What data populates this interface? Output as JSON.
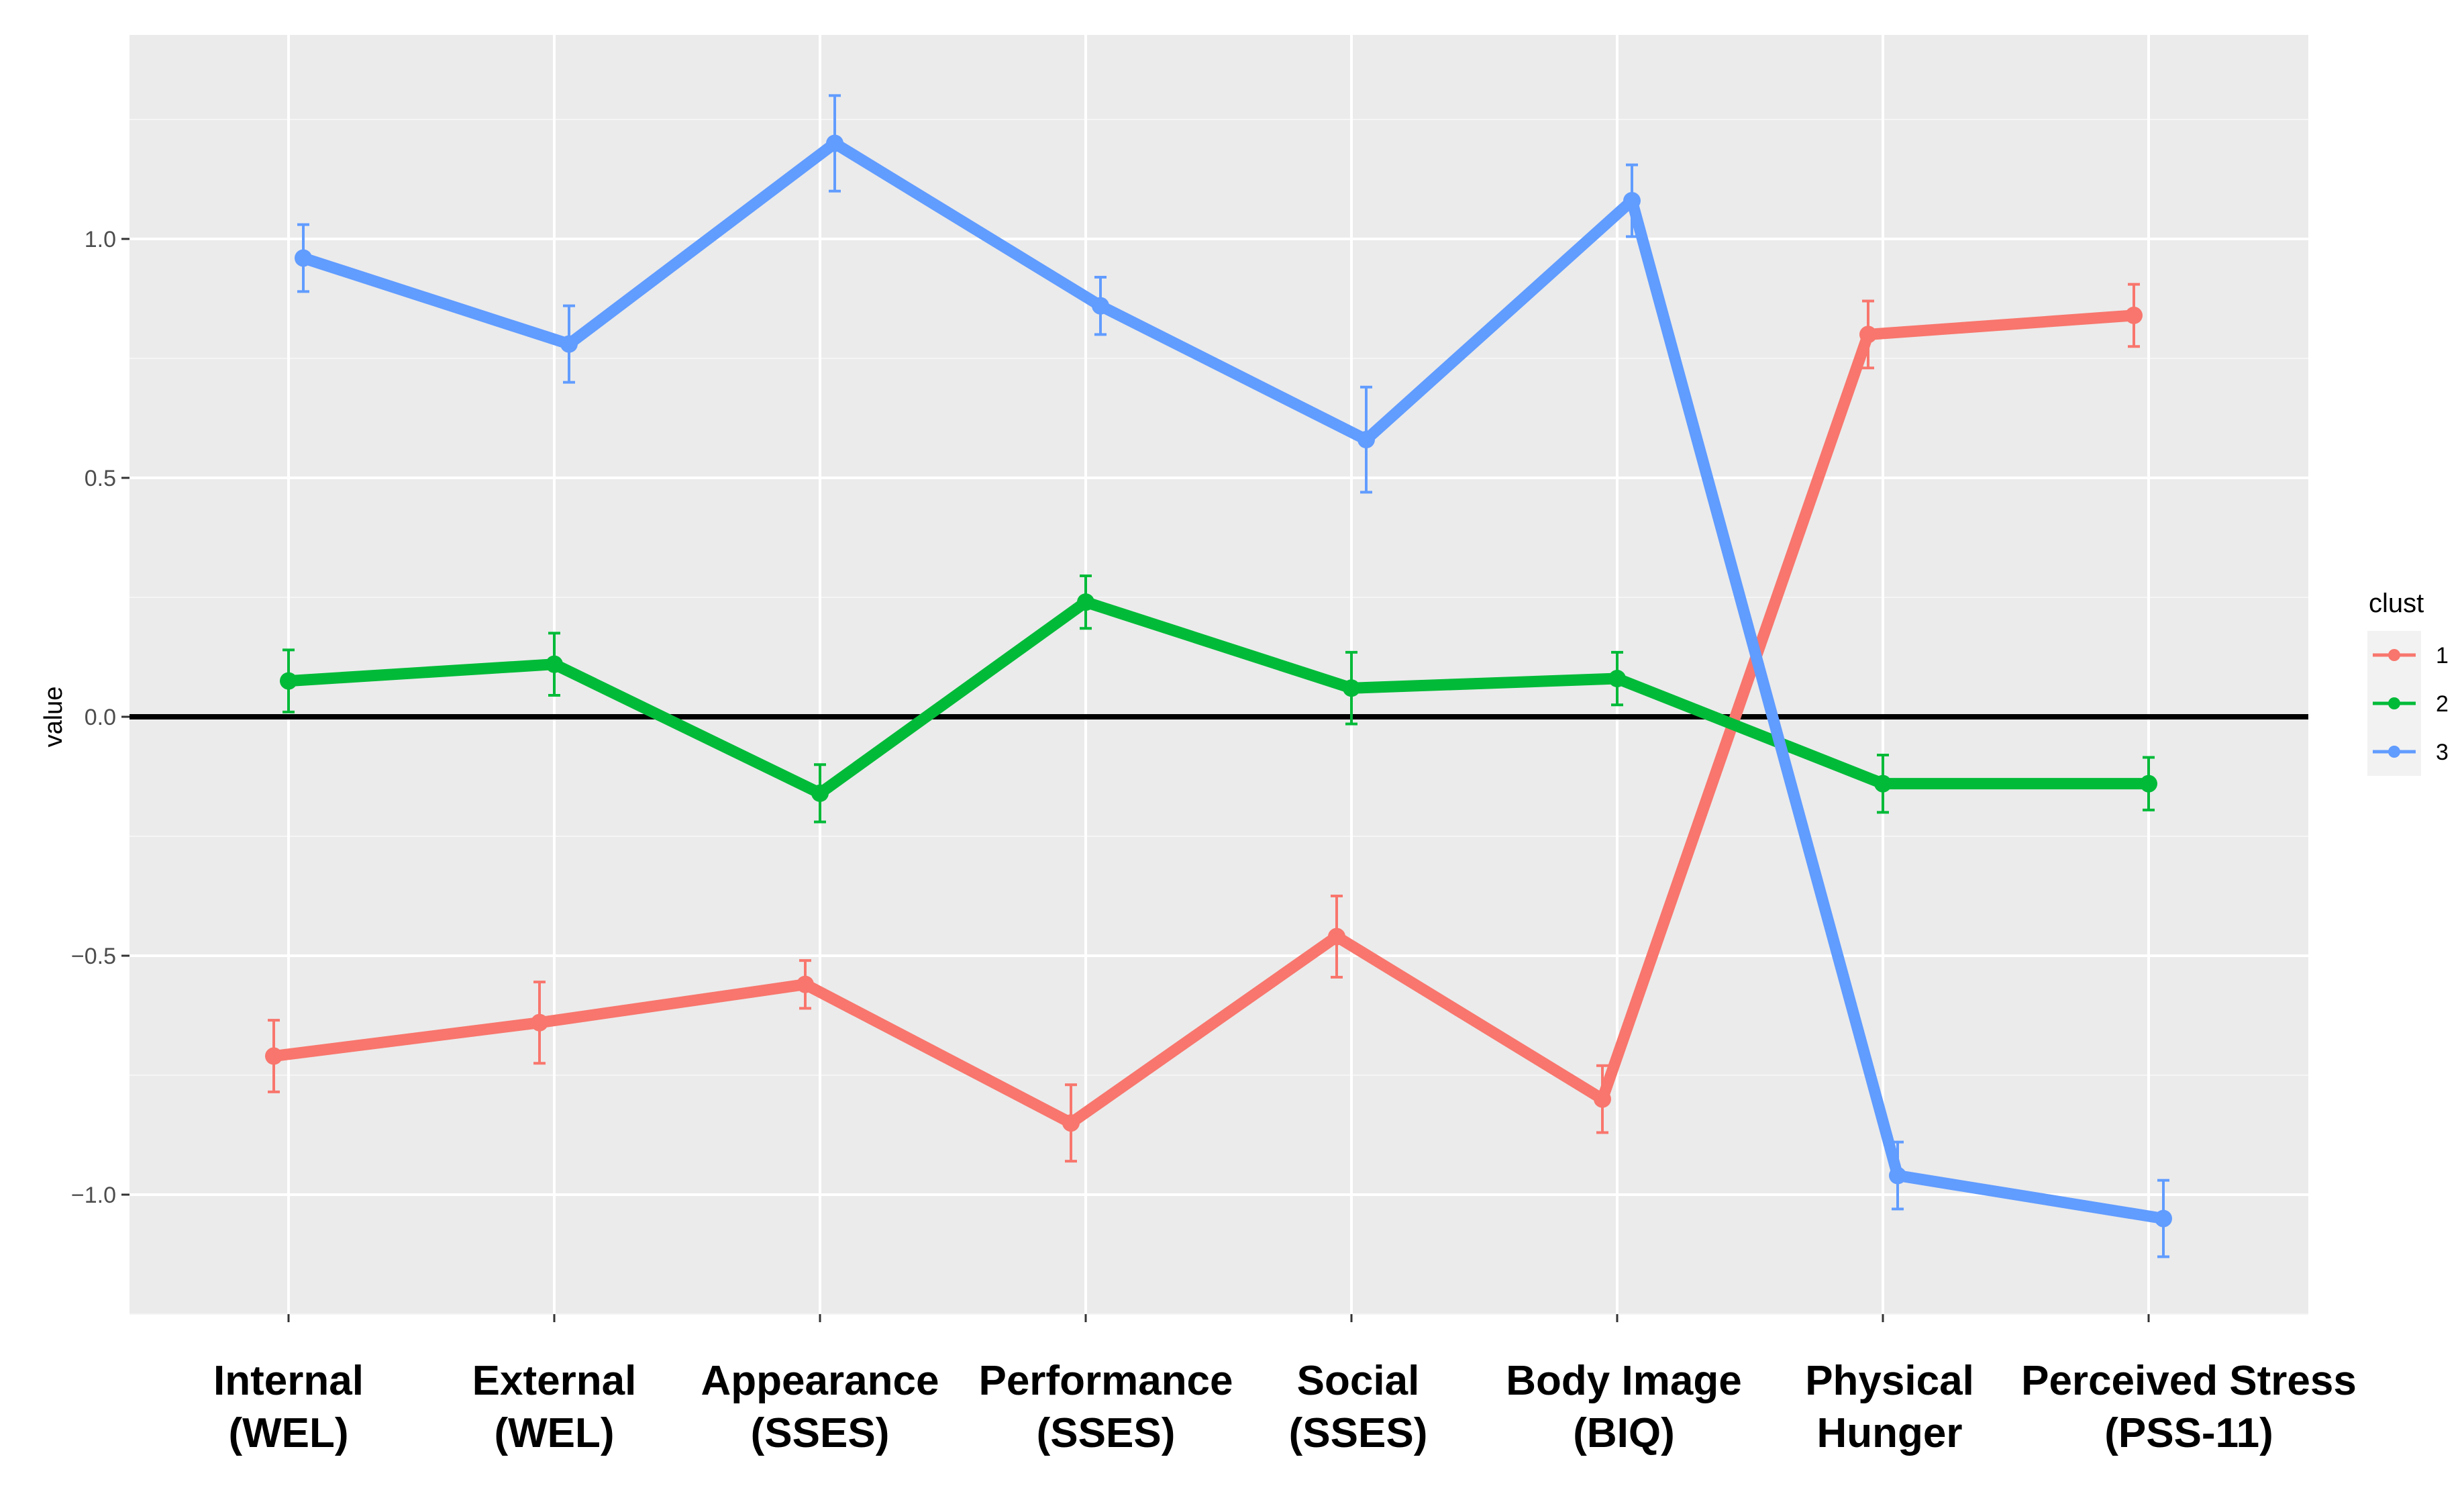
{
  "chart_data": {
    "type": "line",
    "title": "",
    "xlabel": "",
    "ylabel": "value",
    "ylim": [
      -1.25,
      1.43
    ],
    "yticks": [
      1.0,
      0.5,
      0.0,
      -0.5,
      -1.0
    ],
    "ytick_labels": [
      "1.0",
      "0.5",
      "0.0",
      "−0.5",
      "−1.0"
    ],
    "categories": [
      [
        "Internal",
        "(WEL)"
      ],
      [
        "External",
        "(WEL)"
      ],
      [
        "Appearance",
        "(SSES)"
      ],
      [
        "Performance",
        "(SSES)"
      ],
      [
        "Social",
        "(SSES)"
      ],
      [
        "Body Image",
        "(BIQ)"
      ],
      [
        "Physical",
        "Hunger"
      ],
      [
        "Perceived Stress",
        "(PSS-11)"
      ]
    ],
    "reference_line": 0,
    "grid": true,
    "error_bars": true,
    "legend": {
      "title": "clust",
      "position": "right"
    },
    "series": [
      {
        "name": "1",
        "color": "#F8766D",
        "values": [
          -0.71,
          -0.64,
          -0.56,
          -0.85,
          -0.46,
          -0.8,
          0.8,
          0.84
        ],
        "errors": [
          0.075,
          0.085,
          0.05,
          0.08,
          0.085,
          0.07,
          0.07,
          0.065
        ]
      },
      {
        "name": "2",
        "color": "#00BA38",
        "values": [
          0.075,
          0.11,
          -0.16,
          0.24,
          0.06,
          0.08,
          -0.14,
          -0.14
        ],
        "errors": [
          0.065,
          0.065,
          0.06,
          0.055,
          0.075,
          0.055,
          0.06,
          0.055
        ]
      },
      {
        "name": "3",
        "color": "#619CFF",
        "values": [
          0.96,
          0.78,
          1.2,
          0.86,
          0.58,
          1.08,
          -0.96,
          -1.05
        ],
        "errors": [
          0.07,
          0.08,
          0.1,
          0.06,
          0.11,
          0.075,
          0.07,
          0.08
        ]
      }
    ]
  }
}
